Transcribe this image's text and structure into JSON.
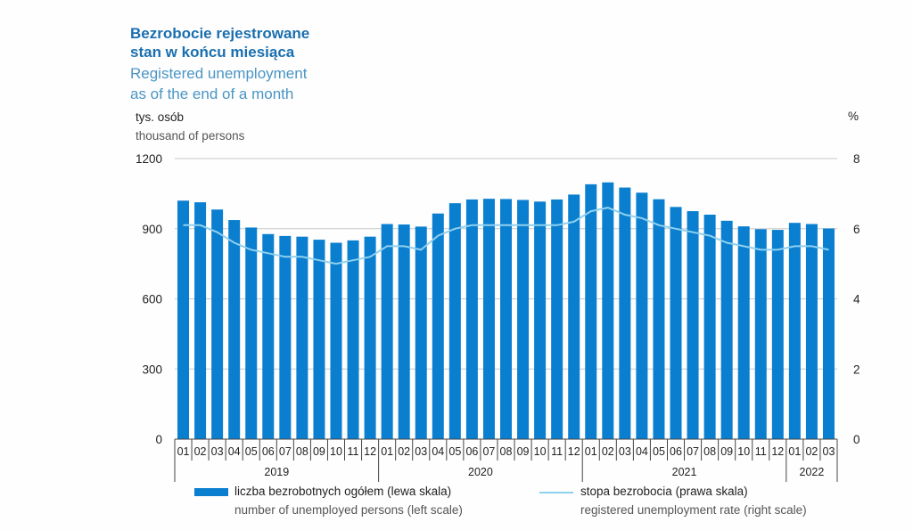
{
  "title": {
    "pl_line1": "Bezrobocie rejestrowane",
    "pl_line2": "stan w końcu miesiąca",
    "en_line1": "Registered unemployment",
    "en_line2": "as of the end of a month"
  },
  "axis": {
    "left_unit_pl": "tys. osób",
    "left_unit_en": "thousand of persons",
    "right_unit": "%"
  },
  "legend": {
    "bars_pl": "liczba bezrobotnych ogółem (lewa skala)",
    "bars_en": "number of unemployed persons (left scale)",
    "line_pl": "stopa bezrobocia (prawa skala)",
    "line_en": "registered unemployment rate (right scale)"
  },
  "colors": {
    "bar": "#0a7fd0",
    "line": "#8fd0ee",
    "grid": "#c8c8c8"
  },
  "chart_data": {
    "type": "bar",
    "title": "Bezrobocie rejestrowane stan w końcu miesiąca / Registered unemployment as of the end of a month",
    "categories": [
      "01",
      "02",
      "03",
      "04",
      "05",
      "06",
      "07",
      "08",
      "09",
      "10",
      "11",
      "12",
      "01",
      "02",
      "03",
      "04",
      "05",
      "06",
      "07",
      "08",
      "09",
      "10",
      "11",
      "12",
      "01",
      "02",
      "03",
      "04",
      "05",
      "06",
      "07",
      "08",
      "09",
      "10",
      "11",
      "12",
      "01",
      "02",
      "03"
    ],
    "year_groups": [
      {
        "year": "2019",
        "count": 12
      },
      {
        "year": "2020",
        "count": 12
      },
      {
        "year": "2021",
        "count": 12
      },
      {
        "year": "2022",
        "count": 3
      }
    ],
    "series": [
      {
        "name": "liczba bezrobotnych ogółem (lewa skala)",
        "axis": "left",
        "type": "bar",
        "values": [
          1020,
          1013,
          982,
          937,
          905,
          877,
          869,
          866,
          853,
          840,
          850,
          866,
          920,
          918,
          909,
          965,
          1009,
          1025,
          1028,
          1027,
          1023,
          1016,
          1025,
          1046,
          1090,
          1098,
          1076,
          1054,
          1026,
          993,
          975,
          960,
          934,
          910,
          898,
          895,
          925,
          920,
          901
        ]
      },
      {
        "name": "stopa bezrobocia (prawa skala)",
        "axis": "right",
        "type": "line",
        "values": [
          6.1,
          6.1,
          5.9,
          5.6,
          5.4,
          5.3,
          5.2,
          5.2,
          5.1,
          5.0,
          5.1,
          5.2,
          5.5,
          5.5,
          5.4,
          5.8,
          6.0,
          6.1,
          6.1,
          6.1,
          6.1,
          6.1,
          6.1,
          6.2,
          6.5,
          6.6,
          6.4,
          6.3,
          6.1,
          6.0,
          5.9,
          5.8,
          5.6,
          5.5,
          5.4,
          5.4,
          5.5,
          5.5,
          5.4
        ]
      }
    ],
    "ylim_left": [
      0,
      1200
    ],
    "yticks_left": [
      "0",
      "300",
      "600",
      "900",
      "1200"
    ],
    "ylim_right": [
      0,
      8
    ],
    "yticks_right": [
      "0",
      "2",
      "4",
      "6",
      "8"
    ],
    "ylabel_left": "tys. osób / thousand of persons",
    "ylabel_right": "%"
  }
}
